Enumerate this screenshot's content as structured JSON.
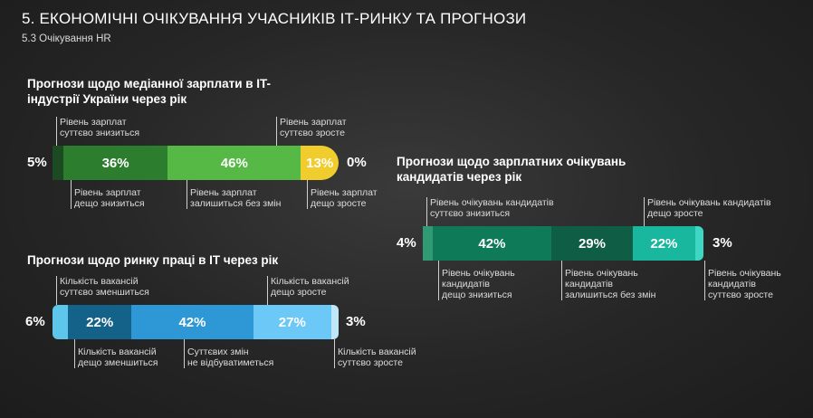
{
  "header": {
    "title": "5. ЕКОНОМІЧНІ ОЧІКУВАННЯ УЧАСНИКІВ ІТ-РИНКУ ТА ПРОГНОЗИ",
    "subtitle": "5.3 Очікування HR"
  },
  "chart_data": [
    {
      "type": "bar",
      "title": "Прогнози щодо медіанної зарплати в IT-індустрії України через рік",
      "categories": [
        "Рівень зарплат суттєво знизиться",
        "Рівень зарплат дещо знизиться",
        "Рівень зарплат залишиться без змін",
        "Рівень зарплат дещо зросте",
        "Рівень зарплат суттєво зросте"
      ],
      "values": [
        5,
        36,
        46,
        13,
        0
      ],
      "labels": [
        "5%",
        "36%",
        "46%",
        "13%",
        "0%"
      ],
      "colors": [
        "#1c4a22",
        "#2c7d2e",
        "#57b945",
        "#f0cc2c",
        "#ffffff"
      ],
      "stacked": true,
      "orientation": "horizontal"
    },
    {
      "type": "bar",
      "title": "Прогнози щодо ринку праці в ІТ через рік",
      "categories": [
        "Кількість вакансій суттєво зменшиться",
        "Кількість вакансій дещо зменшиться",
        "Суттєвих змін не відбуватиметься",
        "Кількість вакансій дещо зросте",
        "Кількість вакансій суттєво зросте"
      ],
      "values": [
        6,
        22,
        42,
        27,
        3
      ],
      "labels": [
        "6%",
        "22%",
        "42%",
        "27%",
        "3%"
      ],
      "colors": [
        "#5ec6ea",
        "#14628a",
        "#2e97d6",
        "#6cc8f6",
        "#bfe7f7"
      ],
      "stacked": true,
      "orientation": "horizontal"
    },
    {
      "type": "bar",
      "title": "Прогнози щодо зарплатних очікувань кандидатів через рік",
      "categories": [
        "Рівень очікувань кандидатів суттєво знизиться",
        "Рівень очікувань кандидатів дещо знизиться",
        "Рівень очікувань кандидатів залишиться без змін",
        "Рівень очікувань кандидатів дещо зросте",
        "Рівень очікувань кандидатів суттєво зросте"
      ],
      "values": [
        4,
        42,
        29,
        22,
        3
      ],
      "labels": [
        "4%",
        "42%",
        "29%",
        "22%",
        "3%"
      ],
      "colors": [
        "#2f9a74",
        "#0e7a57",
        "#0f5d45",
        "#1ab79f",
        "#3fd6c4"
      ],
      "stacked": true,
      "orientation": "horizontal"
    }
  ],
  "tick_color": "#cfcfcf"
}
